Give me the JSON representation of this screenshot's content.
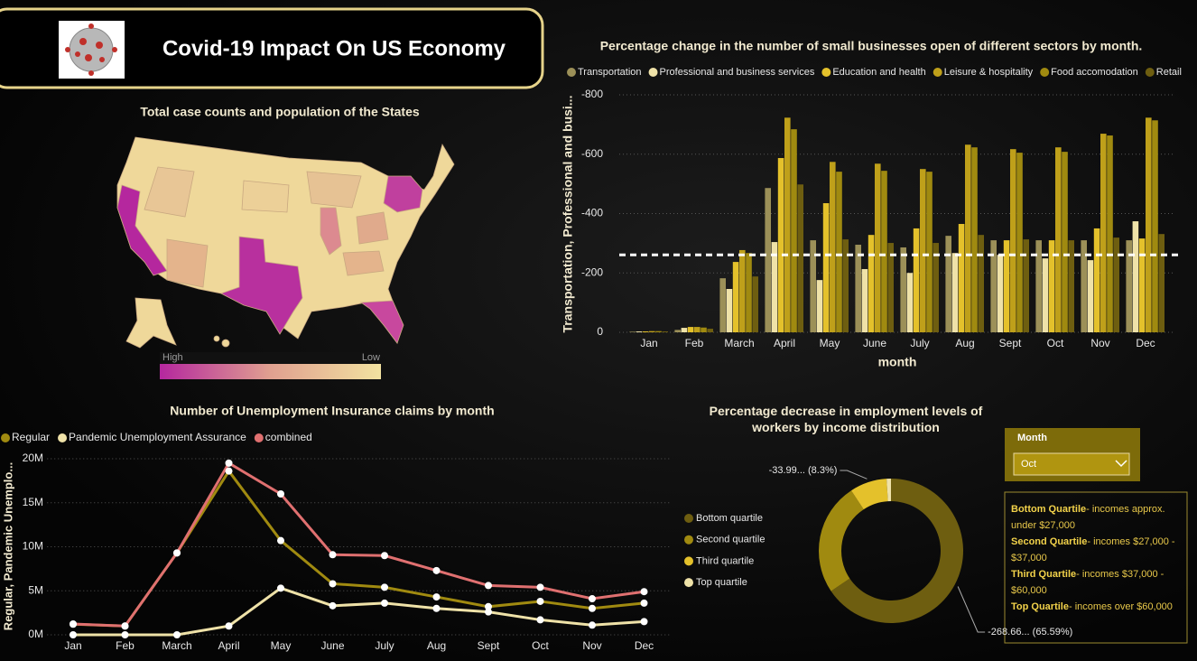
{
  "header": {
    "title": "Covid-19 Impact On US Economy"
  },
  "map": {
    "title": "Total case counts and population of the States",
    "legend_high": "High",
    "legend_low": "Low"
  },
  "chart_data": [
    {
      "type": "bar",
      "title": "Percentage change in the number of small businesses open of different sectors by month.",
      "x_label": "month",
      "y_label": "Transportation, Professional and busi...",
      "categories": [
        "Jan",
        "Feb",
        "March",
        "April",
        "May",
        "June",
        "July",
        "Aug",
        "Sept",
        "Oct",
        "Nov",
        "Dec"
      ],
      "series": [
        {
          "name": "Transportation",
          "color": "#9c9058",
          "values": [
            -2,
            -8,
            -182,
            -486,
            -310,
            -295,
            -286,
            -325,
            -310,
            -310,
            -310,
            -310
          ]
        },
        {
          "name": "Professional and business services",
          "color": "#efe2a8",
          "values": [
            -3,
            -15,
            -146,
            -304,
            -176,
            -213,
            -200,
            -267,
            -261,
            -249,
            -243,
            -374
          ]
        },
        {
          "name": "Education and health",
          "color": "#e4c12b",
          "values": [
            -3,
            -18,
            -237,
            -587,
            -435,
            -328,
            -350,
            -365,
            -310,
            -310,
            -350,
            -316
          ]
        },
        {
          "name": "Leisure & hospitality",
          "color": "#bfa01a",
          "values": [
            -4,
            -18,
            -277,
            -723,
            -574,
            -568,
            -550,
            -632,
            -617,
            -623,
            -669,
            -723
          ]
        },
        {
          "name": "Food accomodation",
          "color": "#a08a10",
          "values": [
            -4,
            -16,
            -267,
            -684,
            -541,
            -544,
            -541,
            -623,
            -605,
            -608,
            -663,
            -714
          ]
        },
        {
          "name": "Retail",
          "color": "#6e5e10",
          "values": [
            -3,
            -12,
            -188,
            -498,
            -313,
            -301,
            -301,
            -328,
            -313,
            -310,
            -319,
            -331
          ]
        }
      ],
      "ylim": [
        0,
        -800
      ],
      "yticks": [
        0,
        -200,
        -400,
        -600,
        -800
      ],
      "grid": true,
      "reference_line": -261
    },
    {
      "type": "line",
      "title": "Number of Unemployment Insurance claims by month",
      "y_label": "Regular, Pandemic Unemplo...",
      "categories": [
        "Jan",
        "Feb",
        "March",
        "April",
        "May",
        "June",
        "July",
        "Aug",
        "Sept",
        "Oct",
        "Nov",
        "Dec"
      ],
      "series": [
        {
          "name": "Regular",
          "color": "#a08a10",
          "values": [
            1200000,
            1000000,
            9300000,
            18600000,
            10700000,
            5800000,
            5400000,
            4300000,
            3200000,
            3800000,
            3000000,
            3600000
          ]
        },
        {
          "name": "Pandemic Unemployment Assurance",
          "color": "#efe2a8",
          "values": [
            0,
            0,
            0,
            1000000,
            5300000,
            3300000,
            3600000,
            3000000,
            2600000,
            1700000,
            1100000,
            1500000
          ]
        },
        {
          "name": "combined",
          "color": "#e07070",
          "values": [
            1230000,
            1000000,
            9300000,
            19500000,
            16000000,
            9100000,
            9000000,
            7300000,
            5600000,
            5400000,
            4100000,
            4900000
          ]
        }
      ],
      "ylim": [
        0,
        20000000
      ],
      "yticks": [
        {
          "value": 0,
          "label": "0M"
        },
        {
          "value": 5000000,
          "label": "5M"
        },
        {
          "value": 10000000,
          "label": "10M"
        },
        {
          "value": 15000000,
          "label": "15M"
        },
        {
          "value": 20000000,
          "label": "20M"
        }
      ],
      "grid": true
    },
    {
      "type": "donut",
      "title": "Percentage decrease in employment levels of workers by income distribution",
      "categories": [
        "Bottom quartile",
        "Second quartile",
        "Third quartile",
        "Top quartile"
      ],
      "colors": [
        "#6e5e10",
        "#a08a10",
        "#e4c12b",
        "#efe2a8"
      ],
      "values": [
        -268.66,
        -103,
        -33.99,
        -4
      ],
      "value_labels": [
        "-268.66... (65.59%)",
        null,
        "-33.99... (8.3%)",
        null
      ]
    }
  ],
  "slicer": {
    "label": "Month",
    "selected": "Oct"
  },
  "notes": [
    {
      "term": "Bottom Quartile",
      "text": "- incomes approx. under $27,000"
    },
    {
      "term": "Second Quartile",
      "text": "- incomes $27,000 - $37,000"
    },
    {
      "term": "Third Quartile",
      "text": "- incomes $37,000 - $60,000"
    },
    {
      "term": "Top Quartile",
      "text": "- incomes over $60,000"
    }
  ]
}
